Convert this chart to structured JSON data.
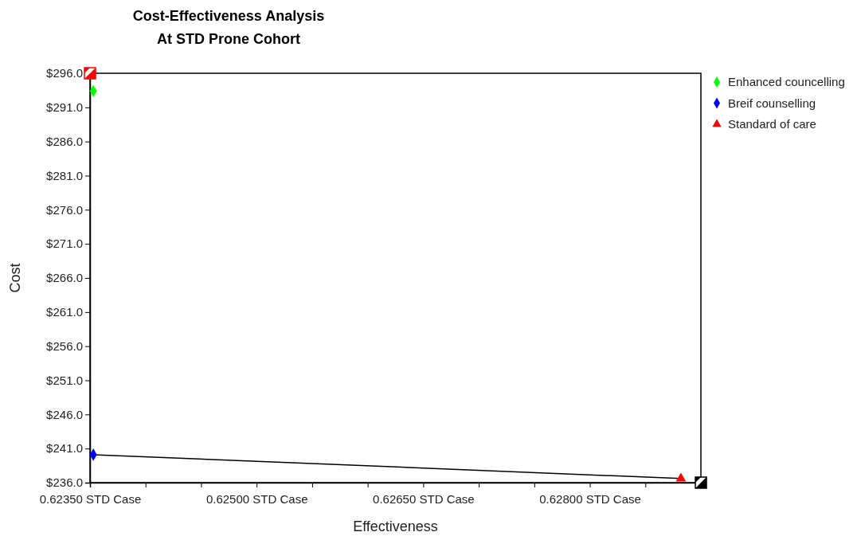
{
  "chart_data": {
    "type": "scatter",
    "title": "Cost-Effectiveness Analysis",
    "subtitle": "At STD Prone Cohort",
    "xlabel": "Effectiveness",
    "ylabel": "Cost",
    "xlim": [
      0.6235,
      0.629
    ],
    "ylim": [
      236,
      296
    ],
    "xticks": [
      {
        "value": 0.6235,
        "label": "0.62350 STD Case"
      },
      {
        "value": 0.624,
        "label": null
      },
      {
        "value": 0.6245,
        "label": null
      },
      {
        "value": 0.625,
        "label": "0.62500 STD Case"
      },
      {
        "value": 0.6255,
        "label": null
      },
      {
        "value": 0.626,
        "label": null
      },
      {
        "value": 0.6265,
        "label": "0.62650 STD Case"
      },
      {
        "value": 0.627,
        "label": null
      },
      {
        "value": 0.6275,
        "label": null
      },
      {
        "value": 0.628,
        "label": "0.62800 STD Case"
      },
      {
        "value": 0.6285,
        "label": null
      }
    ],
    "yticks": [
      {
        "value": 236,
        "label": "$236.0"
      },
      {
        "value": 241,
        "label": "$241.0"
      },
      {
        "value": 246,
        "label": "$246.0"
      },
      {
        "value": 251,
        "label": "$251.0"
      },
      {
        "value": 256,
        "label": "$256.0"
      },
      {
        "value": 261,
        "label": "$261.0"
      },
      {
        "value": 266,
        "label": "$266.0"
      },
      {
        "value": 271,
        "label": "$271.0"
      },
      {
        "value": 276,
        "label": "$276.0"
      },
      {
        "value": 281,
        "label": "$281.0"
      },
      {
        "value": 286,
        "label": "$286.0"
      },
      {
        "value": 291,
        "label": "$291.0"
      },
      {
        "value": 296,
        "label": "$296.0"
      }
    ],
    "grid": false,
    "legend": "top right",
    "x": [
      0.62353,
      0.62882
    ],
    "series": [
      {
        "type": "line",
        "color": "#000000",
        "values": [
          240.1,
          236.6
        ],
        "marker": "none"
      },
      {
        "name": "Enhanced councelling",
        "color": "#00ff00",
        "values": [
          293.4,
          null
        ],
        "marker": "diamond"
      },
      {
        "name": "Breif counselling",
        "color": "#0000ff",
        "values": [
          240.1,
          null
        ],
        "marker": "diamond"
      },
      {
        "name": "Standard of care",
        "color": "#ff0000",
        "values": [
          null,
          236.6
        ],
        "marker": "triangle"
      }
    ]
  }
}
